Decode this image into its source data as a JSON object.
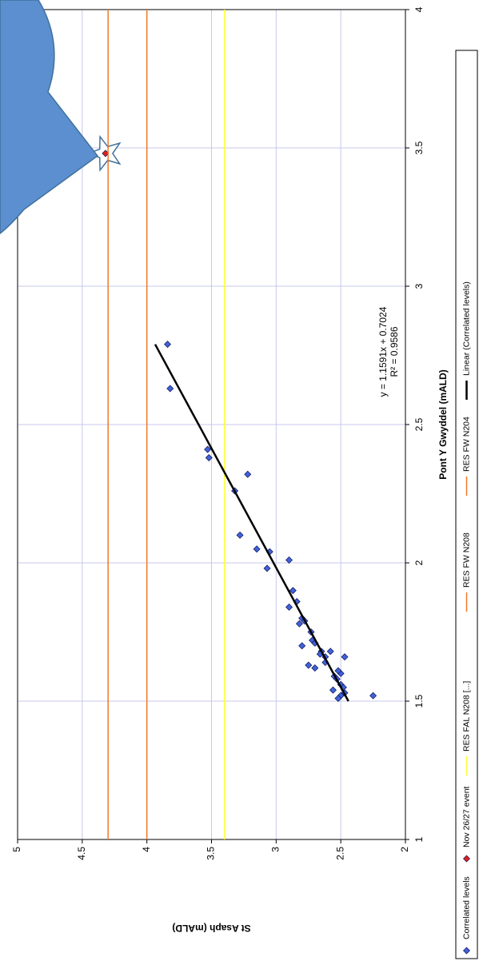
{
  "chart_data": {
    "type": "scatter",
    "x_label": "Pont Y Gwyddel (mALD)",
    "y_label": "St Asaph (mALD)",
    "xlim": [
      1,
      4
    ],
    "xticks": [
      1,
      1.5,
      2,
      2.5,
      3,
      3.5,
      4
    ],
    "ylim": [
      2,
      5
    ],
    "yticks": [
      2,
      2.5,
      3,
      3.5,
      4,
      4.5,
      5
    ],
    "grid": true,
    "legend": "bottom",
    "annotations": [
      "y = 1.1591x + 0.7024",
      "R² = 0.9586"
    ],
    "series": [
      {
        "name": "Correlated levels",
        "style": "marker",
        "color": "#3f63d6",
        "x": [
          2.79,
          2.63,
          2.41,
          2.38,
          2.32,
          2.26,
          2.1,
          2.05,
          2.04,
          2.01,
          1.98,
          1.9,
          1.86,
          1.84,
          1.8,
          1.79,
          1.78,
          1.75,
          1.72,
          1.7,
          1.66,
          1.68,
          1.68,
          1.66,
          1.64,
          1.62,
          1.63,
          1.6,
          1.59,
          1.58,
          1.56,
          1.55,
          1.53,
          1.52,
          1.52,
          1.51,
          1.54,
          1.61,
          1.67,
          1.71
        ],
        "values": [
          3.84,
          3.82,
          3.53,
          3.52,
          3.22,
          3.32,
          3.28,
          3.15,
          3.05,
          2.9,
          3.07,
          2.87,
          2.84,
          2.9,
          2.8,
          2.78,
          2.82,
          2.73,
          2.72,
          2.8,
          2.47,
          2.65,
          2.58,
          2.62,
          2.62,
          2.7,
          2.75,
          2.5,
          2.55,
          2.53,
          2.5,
          2.48,
          2.47,
          2.5,
          2.25,
          2.52,
          2.56,
          2.52,
          2.66,
          2.7
        ]
      },
      {
        "name": "Nov 26/27 event",
        "style": "marker",
        "color": "#e0201b",
        "x": [
          3.48
        ],
        "values": [
          4.32
        ]
      },
      {
        "name": "RES FAL N208 [...]",
        "style": "hline",
        "color": "#ffff33",
        "values": [
          3.4
        ]
      },
      {
        "name": "RES FW N208",
        "style": "hline",
        "color": "#f07828",
        "values": [
          4.3
        ]
      },
      {
        "name": "RES FW N204",
        "style": "hline",
        "color": "#f07828",
        "values": [
          4.0
        ]
      },
      {
        "name": "Linear (Correlated levels)",
        "style": "line",
        "color": "#000000",
        "x": [
          1.5,
          2.79
        ],
        "values": [
          2.441,
          3.936
        ]
      }
    ]
  }
}
